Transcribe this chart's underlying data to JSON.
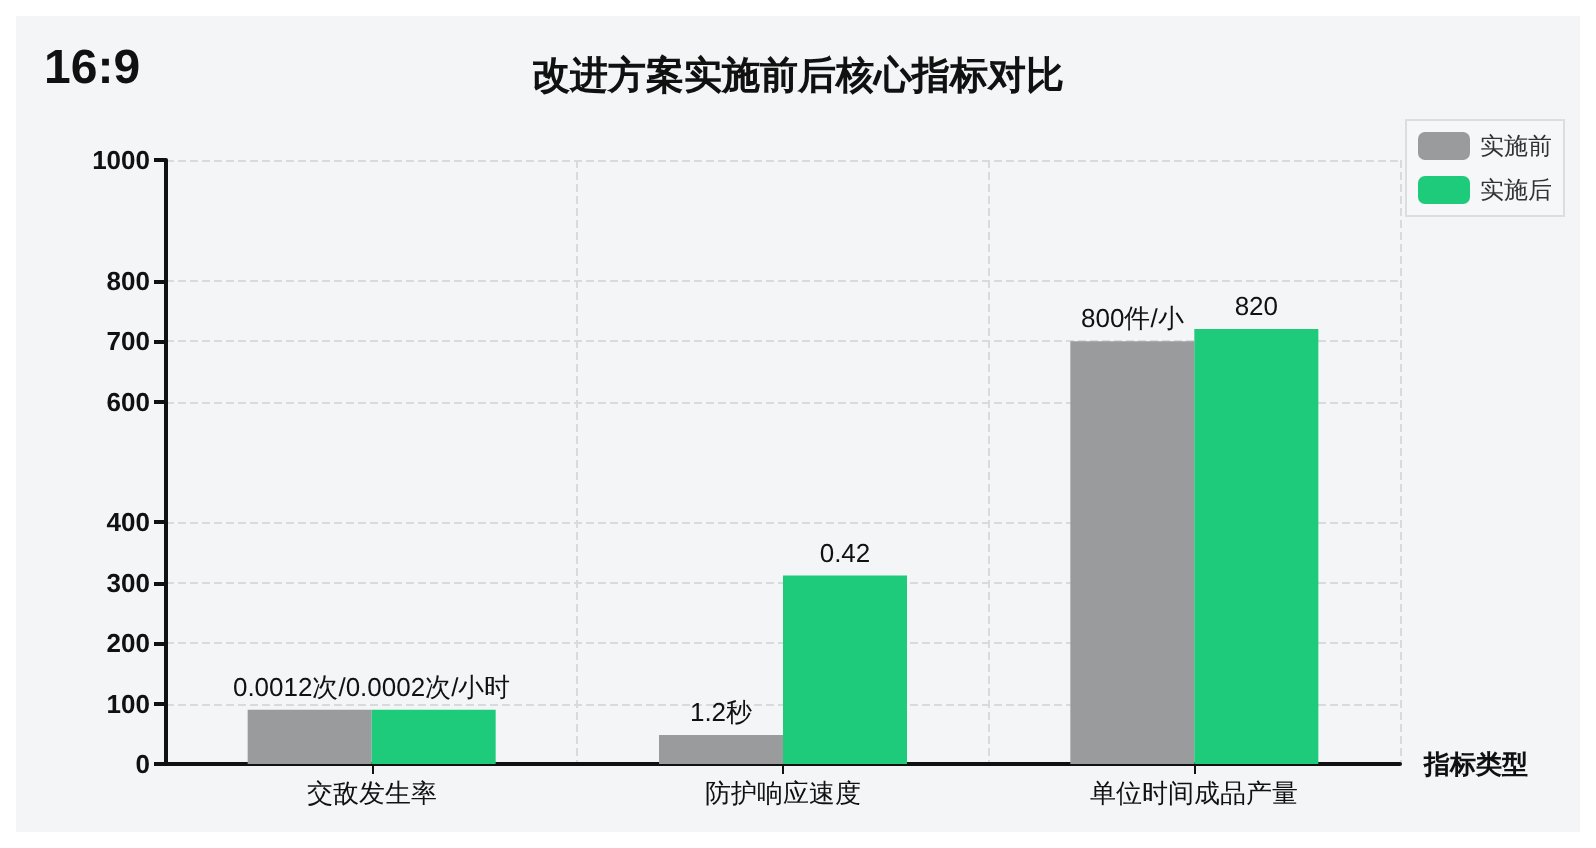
{
  "chart_data": {
    "type": "bar",
    "title": "改进方案实施前后核心指标对比",
    "xlabel": "指标类型",
    "annotations": [
      "16:9",
      {
        "text": "0.0012次/0.0002次/小时",
        "x": "交敌发生率",
        "y": 90
      },
      {
        "text": "1.2秒",
        "x": "防护响应速度",
        "y": 48
      },
      {
        "text": "0.42",
        "x": "防护响应速度",
        "y": 312
      },
      {
        "text": "800件/小",
        "x": "单位时间成品产量",
        "y": 700
      },
      {
        "text": "820",
        "x": "单位时间成品产量",
        "y": 720
      }
    ],
    "categories": [
      "交敌发生率",
      "防护响应速度",
      "单位时间成品产量"
    ],
    "series": [
      {
        "name": "实施前",
        "color": "#9a9b9d",
        "values": [
          90,
          48,
          700
        ]
      },
      {
        "name": "实施后",
        "color": "#1ecb7a",
        "values": [
          90,
          312,
          720
        ]
      }
    ],
    "ylim": [
      0,
      1000
    ],
    "yticks": [
      0,
      100,
      200,
      300,
      400,
      600,
      700,
      800,
      1000
    ],
    "grid": true,
    "legend": "top right"
  }
}
